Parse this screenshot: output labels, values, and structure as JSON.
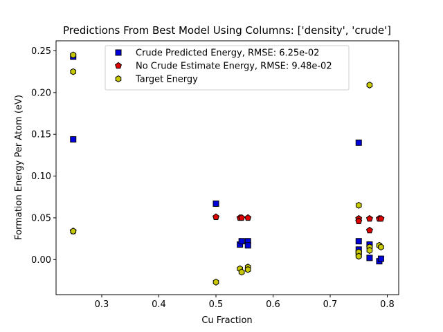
{
  "chart_data": {
    "type": "scatter",
    "title": "Predictions From Best Model Using Columns: ['density', 'crude']",
    "xlabel": "Cu Fraction",
    "ylabel": "Formation Energy Per Atom (eV)",
    "xlim": [
      0.22,
      0.82
    ],
    "ylim": [
      -0.042,
      0.262
    ],
    "xticks": [
      0.3,
      0.4,
      0.5,
      0.6,
      0.7,
      0.8
    ],
    "xtick_labels": [
      "0.3",
      "0.4",
      "0.5",
      "0.6",
      "0.7",
      "0.8"
    ],
    "yticks": [
      0.0,
      0.05,
      0.1,
      0.15,
      0.2,
      0.25
    ],
    "ytick_labels": [
      "0.00",
      "0.05",
      "0.10",
      "0.15",
      "0.20",
      "0.25"
    ],
    "grid": false,
    "legend_position": "top-center",
    "series": [
      {
        "name": "Crude Predicted Energy, RMSE: 6.25e-02",
        "marker": "square",
        "color": "#0000dd",
        "points": [
          {
            "x": 0.25,
            "y": 0.243
          },
          {
            "x": 0.25,
            "y": 0.144
          },
          {
            "x": 0.5,
            "y": 0.067
          },
          {
            "x": 0.542,
            "y": 0.018
          },
          {
            "x": 0.545,
            "y": 0.022
          },
          {
            "x": 0.556,
            "y": 0.022
          },
          {
            "x": 0.556,
            "y": 0.017
          },
          {
            "x": 0.75,
            "y": 0.14
          },
          {
            "x": 0.75,
            "y": 0.022
          },
          {
            "x": 0.75,
            "y": 0.012
          },
          {
            "x": 0.75,
            "y": 0.007
          },
          {
            "x": 0.769,
            "y": 0.018
          },
          {
            "x": 0.769,
            "y": 0.002
          },
          {
            "x": 0.786,
            "y": -0.002
          },
          {
            "x": 0.789,
            "y": 0.001
          }
        ]
      },
      {
        "name": "No Crude Estimate Energy, RMSE: 9.48e-02",
        "marker": "pentagon",
        "color": "#dd0000",
        "points": [
          {
            "x": 0.25,
            "y": 0.034
          },
          {
            "x": 0.5,
            "y": 0.051
          },
          {
            "x": 0.542,
            "y": 0.05
          },
          {
            "x": 0.545,
            "y": 0.05
          },
          {
            "x": 0.556,
            "y": 0.05
          },
          {
            "x": 0.75,
            "y": 0.049
          },
          {
            "x": 0.75,
            "y": 0.046
          },
          {
            "x": 0.769,
            "y": 0.049
          },
          {
            "x": 0.769,
            "y": 0.035
          },
          {
            "x": 0.786,
            "y": 0.049
          },
          {
            "x": 0.789,
            "y": 0.049
          }
        ]
      },
      {
        "name": "Target Energy",
        "marker": "hexagon",
        "color": "#c8c800",
        "points": [
          {
            "x": 0.25,
            "y": 0.245
          },
          {
            "x": 0.25,
            "y": 0.225
          },
          {
            "x": 0.25,
            "y": 0.034
          },
          {
            "x": 0.5,
            "y": -0.027
          },
          {
            "x": 0.542,
            "y": -0.011
          },
          {
            "x": 0.545,
            "y": -0.015
          },
          {
            "x": 0.556,
            "y": -0.009
          },
          {
            "x": 0.556,
            "y": -0.012
          },
          {
            "x": 0.75,
            "y": 0.065
          },
          {
            "x": 0.75,
            "y": 0.009
          },
          {
            "x": 0.75,
            "y": 0.004
          },
          {
            "x": 0.769,
            "y": 0.209
          },
          {
            "x": 0.769,
            "y": 0.015
          },
          {
            "x": 0.769,
            "y": 0.011
          },
          {
            "x": 0.786,
            "y": 0.017
          },
          {
            "x": 0.789,
            "y": 0.015
          }
        ]
      }
    ]
  }
}
